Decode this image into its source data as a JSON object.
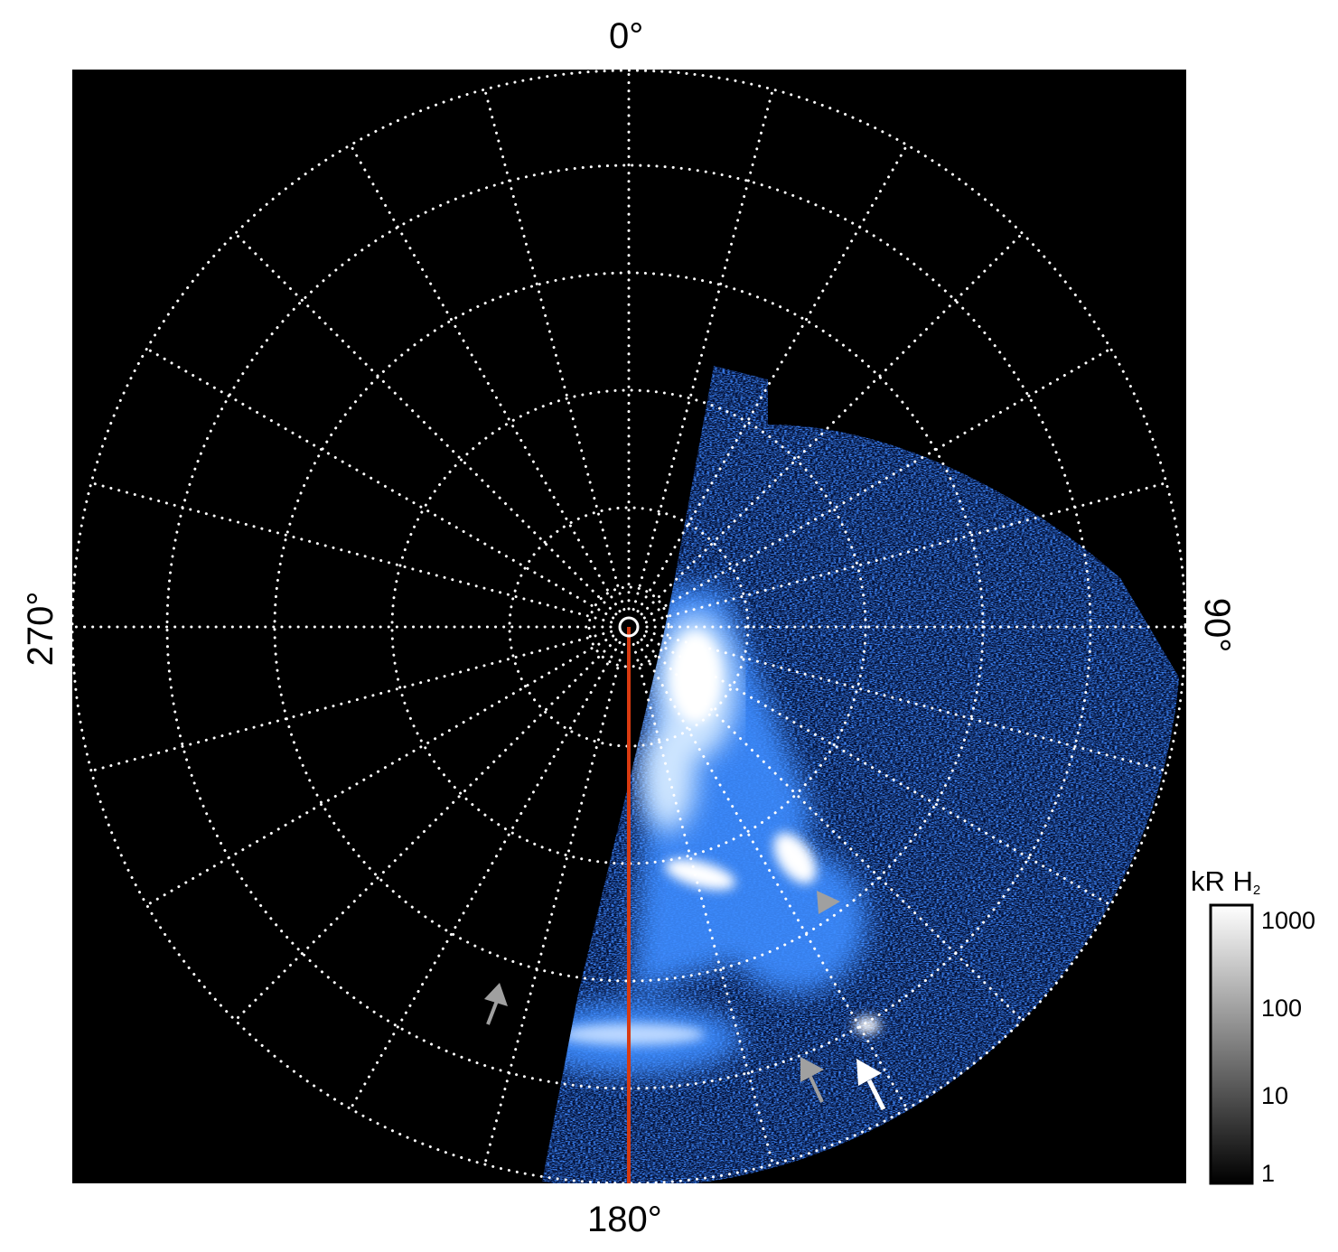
{
  "axes": {
    "top_label": "0°",
    "right_label": "90°",
    "bottom_label": "180°",
    "left_label": "270°"
  },
  "colorbar": {
    "title": "kR H",
    "title_subscript": "2",
    "scale": "log",
    "range": [
      1,
      1000
    ],
    "ticks": [
      "1000",
      "100",
      "10",
      "1"
    ],
    "colormap": "black-to-white"
  },
  "colors": {
    "background": "#000000",
    "grid": "#ffffff",
    "aurora": "#1e6fff",
    "meridian_line": "#d83a10",
    "arrow_gray": "#a0a0a0",
    "arrow_white": "#ffffff"
  },
  "grid": {
    "style": "dotted",
    "meridian_spacing_deg": 15
  },
  "annotations": [
    {
      "type": "arrow",
      "color": "gray"
    },
    {
      "type": "arrow",
      "color": "gray"
    },
    {
      "type": "arrow",
      "color": "white"
    },
    {
      "type": "arrowhead",
      "color": "gray"
    }
  ]
}
